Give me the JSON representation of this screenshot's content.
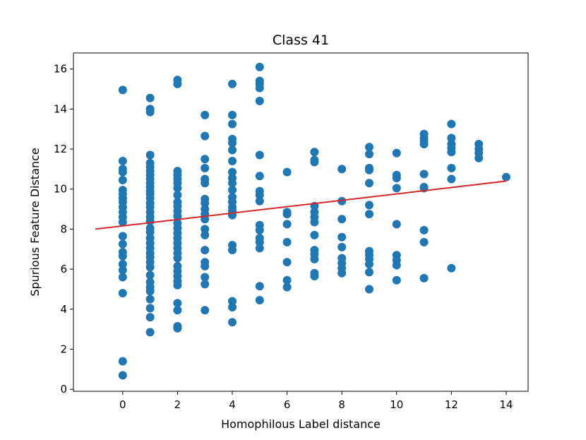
{
  "chart_data": {
    "type": "scatter",
    "title": "Class 41",
    "xlabel": "Homophilous Label distance",
    "ylabel": "Spurious Feature Distance",
    "xlim": [
      -1.8,
      14.8
    ],
    "ylim": [
      -0.1,
      16.8
    ],
    "xticks": [
      "0",
      "2",
      "4",
      "6",
      "8",
      "10",
      "12",
      "14"
    ],
    "yticks": [
      "0",
      "2",
      "4",
      "6",
      "8",
      "10",
      "12",
      "14",
      "16"
    ],
    "xtick_values": [
      0,
      2,
      4,
      6,
      8,
      10,
      12,
      14
    ],
    "ytick_values": [
      0,
      2,
      4,
      6,
      8,
      10,
      12,
      14,
      16
    ],
    "grid": false,
    "colors": {
      "points": "#1f77b4",
      "trend": "#d62728"
    },
    "points": [
      [
        0,
        14.95
      ],
      [
        0,
        11.4
      ],
      [
        0,
        11.0
      ],
      [
        0,
        10.85
      ],
      [
        0,
        10.45
      ],
      [
        0,
        9.95
      ],
      [
        0,
        9.75
      ],
      [
        0,
        9.55
      ],
      [
        0,
        9.35
      ],
      [
        0,
        9.1
      ],
      [
        0,
        8.85
      ],
      [
        0,
        8.6
      ],
      [
        0,
        8.35
      ],
      [
        0,
        7.65
      ],
      [
        0,
        7.25
      ],
      [
        0,
        6.85
      ],
      [
        0,
        6.65
      ],
      [
        0,
        6.25
      ],
      [
        0,
        5.95
      ],
      [
        0,
        5.6
      ],
      [
        0,
        4.8
      ],
      [
        0,
        1.4
      ],
      [
        0,
        0.7
      ],
      [
        1,
        14.55
      ],
      [
        1,
        14.0
      ],
      [
        1,
        13.85
      ],
      [
        1,
        11.7
      ],
      [
        1,
        11.3
      ],
      [
        1,
        11.1
      ],
      [
        1,
        10.9
      ],
      [
        1,
        10.7
      ],
      [
        1,
        10.5
      ],
      [
        1,
        10.3
      ],
      [
        1,
        10.1
      ],
      [
        1,
        9.9
      ],
      [
        1,
        9.75
      ],
      [
        1,
        9.55
      ],
      [
        1,
        9.3
      ],
      [
        1,
        9.1
      ],
      [
        1,
        8.85
      ],
      [
        1,
        8.6
      ],
      [
        1,
        8.4
      ],
      [
        1,
        8.05
      ],
      [
        1,
        7.85
      ],
      [
        1,
        7.55
      ],
      [
        1,
        7.3
      ],
      [
        1,
        7.05
      ],
      [
        1,
        6.8
      ],
      [
        1,
        6.6
      ],
      [
        1,
        6.35
      ],
      [
        1,
        6.1
      ],
      [
        1,
        5.7
      ],
      [
        1,
        5.35
      ],
      [
        1,
        5.1
      ],
      [
        1,
        4.9
      ],
      [
        1,
        4.5
      ],
      [
        1,
        4.05
      ],
      [
        1,
        3.6
      ],
      [
        1,
        2.85
      ],
      [
        2,
        15.45
      ],
      [
        2,
        15.25
      ],
      [
        2,
        10.9
      ],
      [
        2,
        10.7
      ],
      [
        2,
        10.5
      ],
      [
        2,
        10.3
      ],
      [
        2,
        10.05
      ],
      [
        2,
        9.7
      ],
      [
        2,
        9.35
      ],
      [
        2,
        9.15
      ],
      [
        2,
        8.9
      ],
      [
        2,
        8.65
      ],
      [
        2,
        8.3
      ],
      [
        2,
        8.05
      ],
      [
        2,
        7.8
      ],
      [
        2,
        7.55
      ],
      [
        2,
        7.3
      ],
      [
        2,
        7.05
      ],
      [
        2,
        6.8
      ],
      [
        2,
        6.55
      ],
      [
        2,
        6.15
      ],
      [
        2,
        5.9
      ],
      [
        2,
        5.65
      ],
      [
        2,
        5.4
      ],
      [
        2,
        5.2
      ],
      [
        2,
        4.3
      ],
      [
        2,
        3.95
      ],
      [
        2,
        3.15
      ],
      [
        2,
        3.05
      ],
      [
        3,
        13.7
      ],
      [
        3,
        12.65
      ],
      [
        3,
        11.5
      ],
      [
        3,
        11.05
      ],
      [
        3,
        10.5
      ],
      [
        3,
        10.3
      ],
      [
        3,
        9.5
      ],
      [
        3,
        9.3
      ],
      [
        3,
        9.0
      ],
      [
        3,
        8.75
      ],
      [
        3,
        8.5
      ],
      [
        3,
        8.0
      ],
      [
        3,
        7.7
      ],
      [
        3,
        6.95
      ],
      [
        3,
        6.35
      ],
      [
        3,
        6.15
      ],
      [
        3,
        5.6
      ],
      [
        3,
        5.25
      ],
      [
        3,
        3.95
      ],
      [
        4,
        15.25
      ],
      [
        4,
        13.7
      ],
      [
        4,
        13.25
      ],
      [
        4,
        12.5
      ],
      [
        4,
        12.3
      ],
      [
        4,
        11.95
      ],
      [
        4,
        11.4
      ],
      [
        4,
        10.85
      ],
      [
        4,
        10.55
      ],
      [
        4,
        10.3
      ],
      [
        4,
        9.95
      ],
      [
        4,
        9.6
      ],
      [
        4,
        9.35
      ],
      [
        4,
        9.1
      ],
      [
        4,
        8.9
      ],
      [
        4,
        8.7
      ],
      [
        4,
        7.2
      ],
      [
        4,
        6.95
      ],
      [
        4,
        4.4
      ],
      [
        4,
        4.1
      ],
      [
        4,
        3.35
      ],
      [
        5,
        16.1
      ],
      [
        5,
        15.4
      ],
      [
        5,
        15.25
      ],
      [
        5,
        15.05
      ],
      [
        5,
        14.4
      ],
      [
        5,
        11.7
      ],
      [
        5,
        10.65
      ],
      [
        5,
        9.9
      ],
      [
        5,
        9.7
      ],
      [
        5,
        9.4
      ],
      [
        5,
        8.2
      ],
      [
        5,
        7.95
      ],
      [
        5,
        7.55
      ],
      [
        5,
        7.35
      ],
      [
        5,
        7.05
      ],
      [
        5,
        5.15
      ],
      [
        5,
        4.45
      ],
      [
        6,
        10.85
      ],
      [
        6,
        8.85
      ],
      [
        6,
        8.75
      ],
      [
        6,
        8.25
      ],
      [
        6,
        7.35
      ],
      [
        6,
        6.35
      ],
      [
        6,
        5.45
      ],
      [
        6,
        5.1
      ],
      [
        7,
        11.85
      ],
      [
        7,
        11.45
      ],
      [
        7,
        11.35
      ],
      [
        7,
        9.15
      ],
      [
        7,
        8.85
      ],
      [
        7,
        8.6
      ],
      [
        7,
        8.35
      ],
      [
        7,
        7.7
      ],
      [
        7,
        6.95
      ],
      [
        7,
        6.75
      ],
      [
        7,
        6.5
      ],
      [
        7,
        5.8
      ],
      [
        7,
        5.65
      ],
      [
        8,
        11.0
      ],
      [
        8,
        9.4
      ],
      [
        8,
        8.5
      ],
      [
        8,
        7.6
      ],
      [
        8,
        7.1
      ],
      [
        8,
        6.55
      ],
      [
        8,
        6.3
      ],
      [
        8,
        6.05
      ],
      [
        8,
        5.8
      ],
      [
        9,
        12.1
      ],
      [
        9,
        11.75
      ],
      [
        9,
        11.05
      ],
      [
        9,
        10.95
      ],
      [
        9,
        10.3
      ],
      [
        9,
        9.2
      ],
      [
        9,
        8.75
      ],
      [
        9,
        6.9
      ],
      [
        9,
        6.7
      ],
      [
        9,
        6.5
      ],
      [
        9,
        6.25
      ],
      [
        9,
        5.85
      ],
      [
        9,
        5.0
      ],
      [
        10,
        11.8
      ],
      [
        10,
        10.7
      ],
      [
        10,
        10.55
      ],
      [
        10,
        10.05
      ],
      [
        10,
        8.25
      ],
      [
        10,
        6.7
      ],
      [
        10,
        6.45
      ],
      [
        10,
        6.2
      ],
      [
        10,
        5.45
      ],
      [
        11,
        12.75
      ],
      [
        11,
        12.55
      ],
      [
        11,
        12.4
      ],
      [
        11,
        12.25
      ],
      [
        11,
        10.75
      ],
      [
        11,
        10.1
      ],
      [
        11,
        10.05
      ],
      [
        11,
        7.95
      ],
      [
        11,
        7.35
      ],
      [
        11,
        5.55
      ],
      [
        12,
        13.25
      ],
      [
        12,
        12.55
      ],
      [
        12,
        12.25
      ],
      [
        12,
        12.05
      ],
      [
        12,
        11.85
      ],
      [
        12,
        11.05
      ],
      [
        12,
        10.5
      ],
      [
        12,
        6.05
      ],
      [
        13,
        12.25
      ],
      [
        13,
        12.0
      ],
      [
        13,
        11.8
      ],
      [
        13,
        11.55
      ],
      [
        14,
        10.6
      ]
    ],
    "trend_line": {
      "x": [
        -1,
        14
      ],
      "y": [
        8.0,
        10.4
      ]
    }
  }
}
